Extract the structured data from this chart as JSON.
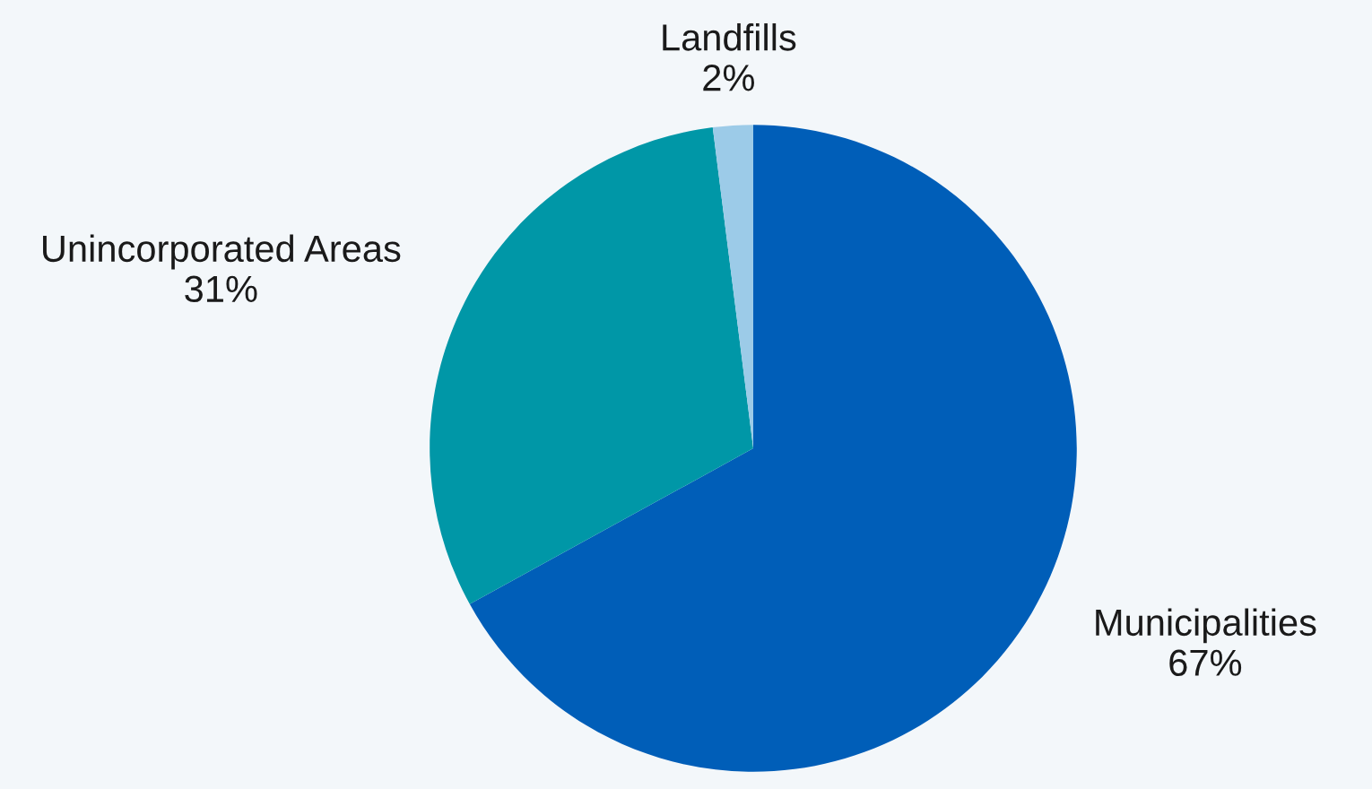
{
  "chart_data": {
    "type": "pie",
    "categories": [
      "Municipalities",
      "Unincorporated Areas",
      "Landfills"
    ],
    "values": [
      67,
      31,
      2
    ],
    "colors": [
      "#005eb8",
      "#0097a7",
      "#9ccbe8"
    ],
    "value_labels": [
      "67%",
      "31%",
      "2%"
    ],
    "legend": false
  }
}
